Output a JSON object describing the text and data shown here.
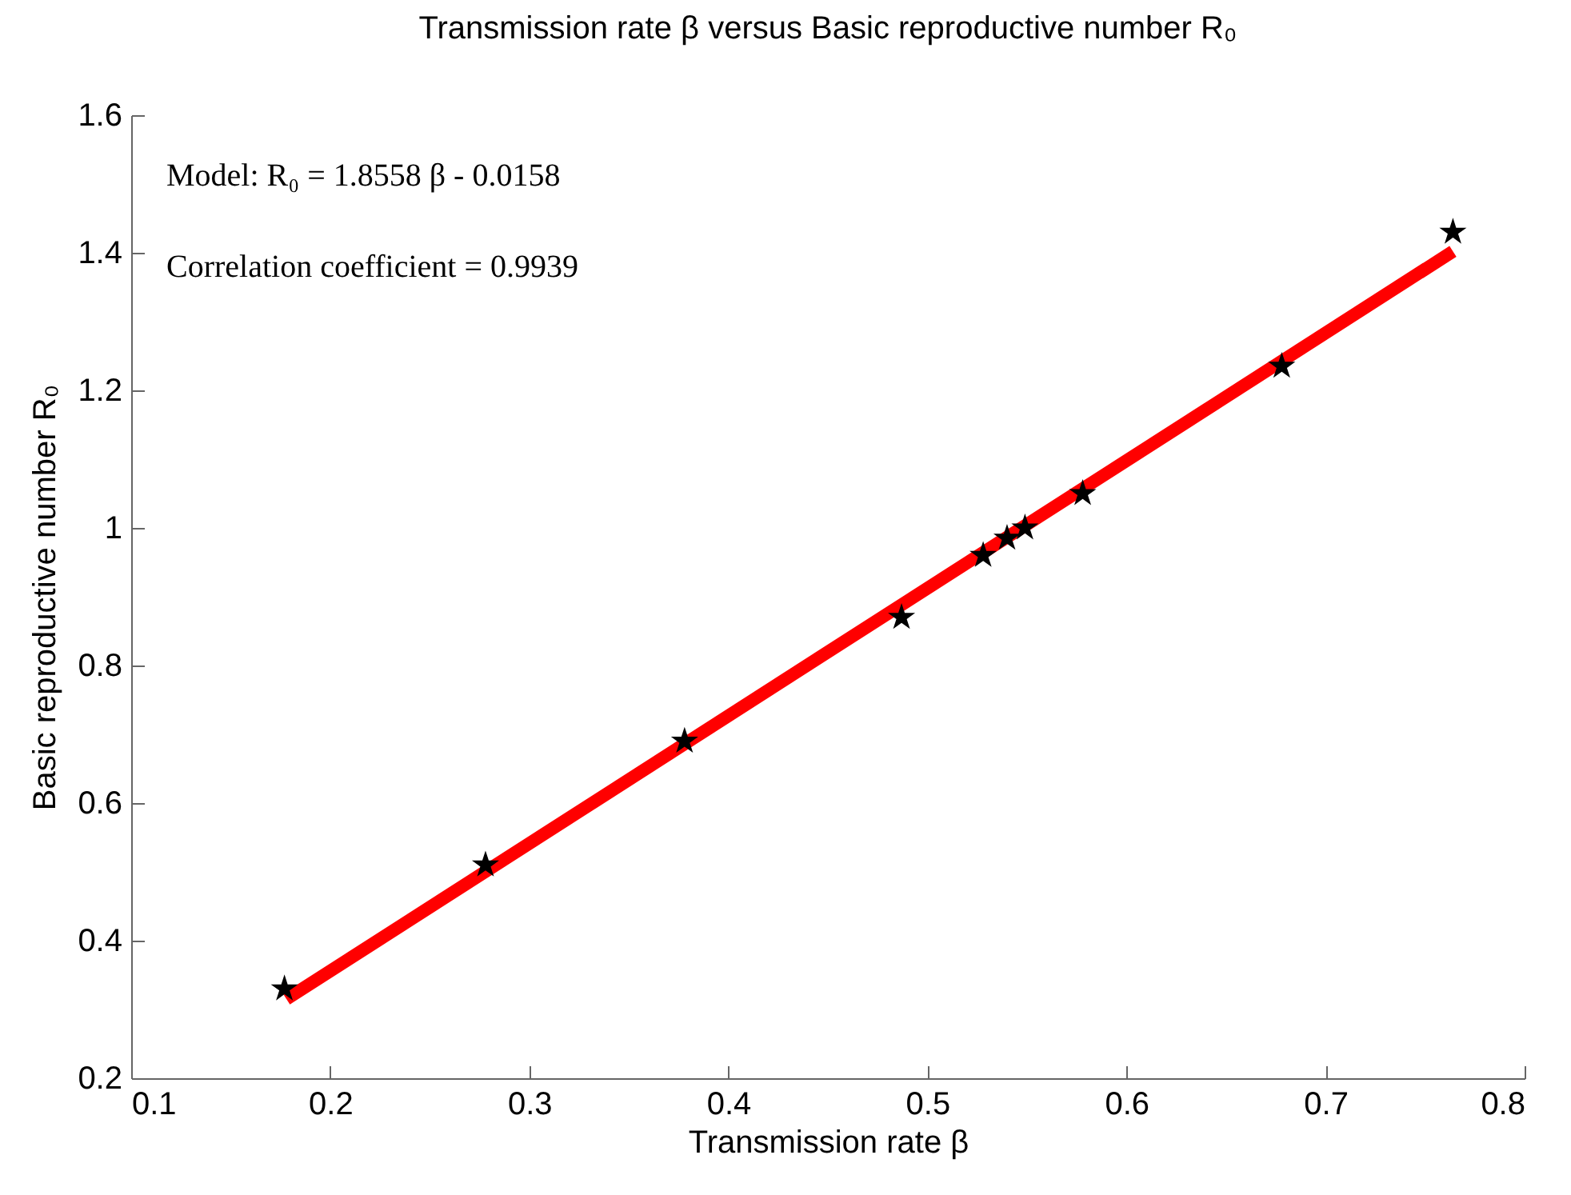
{
  "chart_data": {
    "type": "scatter",
    "title": "Transmission rate β versus Basic reproductive number R₀",
    "xlabel": "Transmission rate β",
    "ylabel": "Basic reproductive number R₀",
    "annotations": [
      "Model: R₀ = 1.8558 β - 0.0158",
      "Correlation coefficient = 0.9939"
    ],
    "series": [
      {
        "color": "#000000",
        "marker": "star",
        "x": [
          0.177,
          0.278,
          0.378,
          0.487,
          0.528,
          0.54,
          0.549,
          0.578,
          0.678,
          0.764
        ],
        "values": [
          0.33,
          0.51,
          0.69,
          0.87,
          0.96,
          0.985,
          1.0,
          1.05,
          1.235,
          1.43
        ]
      },
      {
        "type": "line",
        "color": "#ff0000",
        "marker": "none",
        "line_style": "solid",
        "x": [
          0.178,
          0.764
        ],
        "values": [
          0.315,
          1.402
        ]
      }
    ],
    "xlim": [
      0.1,
      0.8
    ],
    "xticks": [
      0.1,
      0.2,
      0.3,
      0.4,
      0.5,
      0.6,
      0.7,
      0.8
    ],
    "ylim": [
      0.2,
      1.6
    ],
    "yticks": [
      0.2,
      0.4,
      0.6,
      0.8,
      1,
      1.2,
      1.4,
      1.6
    ],
    "grid": false
  }
}
